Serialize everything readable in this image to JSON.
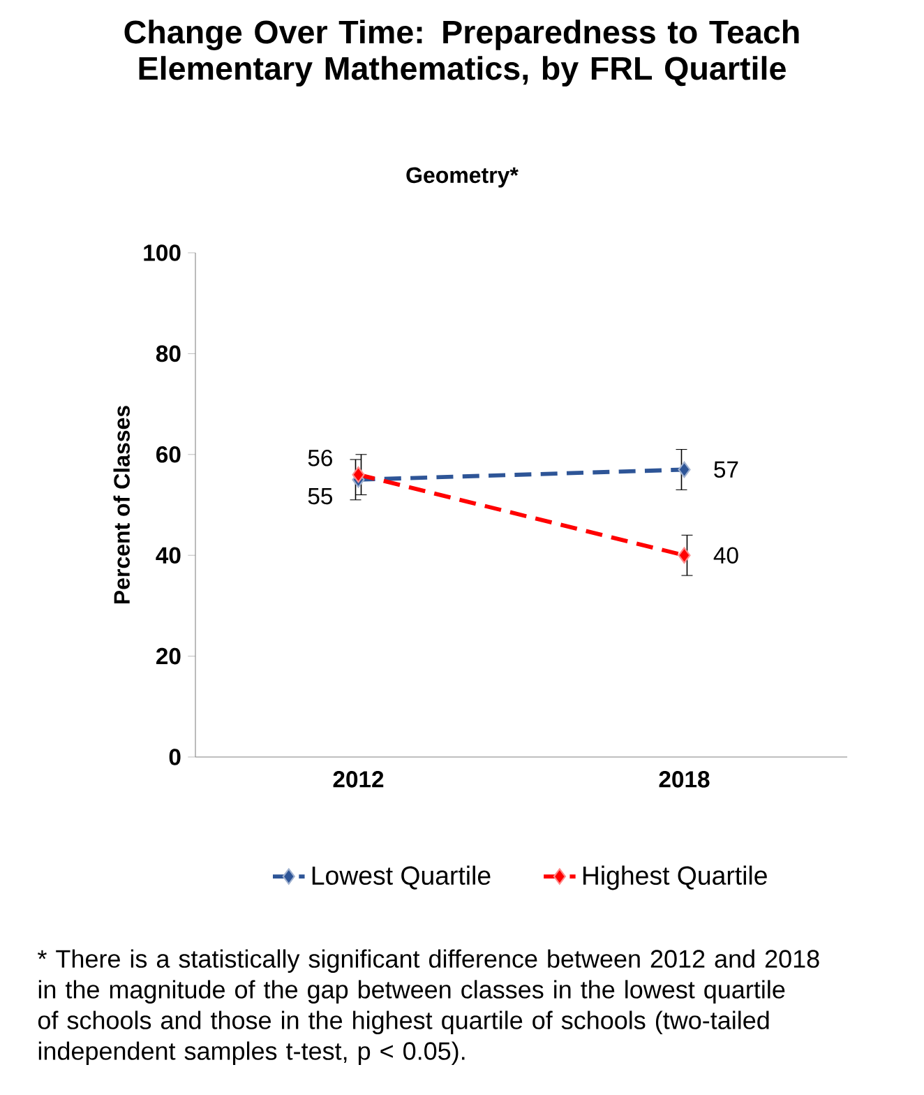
{
  "chart_data": {
    "type": "line",
    "title": "Change Over Time: Preparedness to Teach Elementary Mathematics, by FRL Quartile",
    "subtitle": "Geometry*",
    "ylabel": "Percent of Classes",
    "categories": [
      "2012",
      "2018"
    ],
    "series": [
      {
        "name": "Lowest Quartile",
        "color": "#2e5597",
        "values": [
          55,
          57
        ],
        "errors": [
          4,
          4
        ]
      },
      {
        "name": "Highest Quartile",
        "color": "#ff0000",
        "values": [
          56,
          40
        ],
        "errors": [
          4,
          4
        ]
      }
    ],
    "ylim": [
      0,
      100
    ],
    "yticks": [
      0,
      20,
      40,
      60,
      80,
      100
    ],
    "data_labels": true,
    "legend": "bottom",
    "marker": "diamond",
    "line_style": "dashed",
    "grid": false,
    "annotations": [
      "* There is a statistically significant difference between 2012 and 2018 in the magnitude of the gap between classes in the lowest quartile of schools and those in the highest quartile of schools (two-tailed independent samples t-test, p < 0.05)."
    ]
  }
}
